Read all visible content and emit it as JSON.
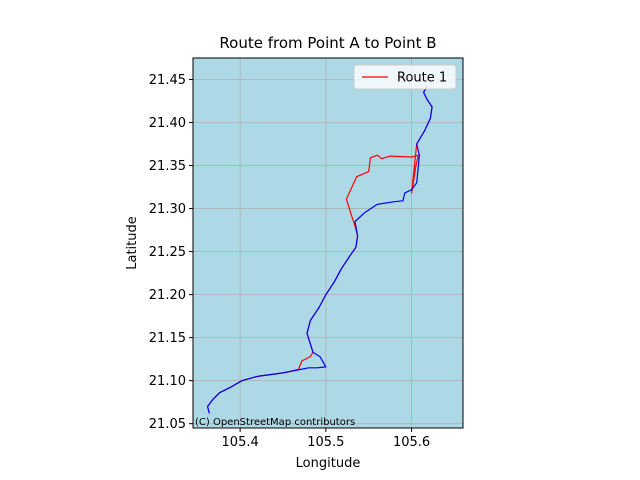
{
  "chart_data": {
    "type": "line",
    "title": "Route from Point A to Point B",
    "xlabel": "Longitude",
    "ylabel": "Latitude",
    "xlim": [
      105.345,
      105.66
    ],
    "ylim": [
      21.045,
      21.475
    ],
    "xticks": [
      105.4,
      105.5,
      105.6
    ],
    "xtick_labels": [
      "105.4",
      "105.5",
      "105.6"
    ],
    "yticks": [
      21.05,
      21.1,
      21.15,
      21.2,
      21.25,
      21.3,
      21.35,
      21.4,
      21.45
    ],
    "ytick_labels": [
      "21.05",
      "21.10",
      "21.15",
      "21.20",
      "21.25",
      "21.30",
      "21.35",
      "21.40",
      "21.45"
    ],
    "grid": true,
    "background_color": "#add8e6",
    "legend_position": "top-right",
    "attribution": "(C) OpenStreetMap contributors",
    "series": [
      {
        "name": "Route 1",
        "color": "#ff0000",
        "in_legend": true,
        "points": [
          [
            105.364,
            21.062
          ],
          [
            105.362,
            21.07
          ],
          [
            105.368,
            21.078
          ],
          [
            105.376,
            21.086
          ],
          [
            105.388,
            21.092
          ],
          [
            105.402,
            21.1
          ],
          [
            105.42,
            21.105
          ],
          [
            105.45,
            21.109
          ],
          [
            105.468,
            21.113
          ],
          [
            105.472,
            21.123
          ],
          [
            105.482,
            21.128
          ],
          [
            105.485,
            21.133
          ],
          [
            105.478,
            21.155
          ],
          [
            105.482,
            21.17
          ],
          [
            105.492,
            21.185
          ],
          [
            105.5,
            21.2
          ],
          [
            105.51,
            21.215
          ],
          [
            105.518,
            21.23
          ],
          [
            105.528,
            21.245
          ],
          [
            105.535,
            21.255
          ],
          [
            105.537,
            21.268
          ],
          [
            105.534,
            21.28
          ],
          [
            105.529,
            21.295
          ],
          [
            105.524,
            21.311
          ],
          [
            105.536,
            21.337
          ],
          [
            105.55,
            21.343
          ],
          [
            105.552,
            21.359
          ],
          [
            105.56,
            21.362
          ],
          [
            105.565,
            21.358
          ],
          [
            105.575,
            21.361
          ],
          [
            105.6,
            21.36
          ],
          [
            105.608,
            21.362
          ],
          [
            105.605,
            21.35
          ],
          [
            105.602,
            21.33
          ],
          [
            105.6,
            21.318
          ],
          [
            105.606,
            21.375
          ],
          [
            105.615,
            21.39
          ],
          [
            105.622,
            21.405
          ],
          [
            105.624,
            21.418
          ],
          [
            105.618,
            21.427
          ],
          [
            105.614,
            21.435
          ],
          [
            105.618,
            21.442
          ]
        ]
      },
      {
        "name": "",
        "color": "#0000ff",
        "in_legend": false,
        "points": [
          [
            105.364,
            21.062
          ],
          [
            105.362,
            21.07
          ],
          [
            105.368,
            21.078
          ],
          [
            105.376,
            21.086
          ],
          [
            105.388,
            21.092
          ],
          [
            105.402,
            21.1
          ],
          [
            105.42,
            21.105
          ],
          [
            105.45,
            21.109
          ],
          [
            105.47,
            21.113
          ],
          [
            105.48,
            21.115
          ],
          [
            105.49,
            21.115
          ],
          [
            105.5,
            21.116
          ],
          [
            105.493,
            21.128
          ],
          [
            105.485,
            21.133
          ],
          [
            105.478,
            21.155
          ],
          [
            105.482,
            21.17
          ],
          [
            105.492,
            21.185
          ],
          [
            105.5,
            21.2
          ],
          [
            105.51,
            21.215
          ],
          [
            105.518,
            21.23
          ],
          [
            105.528,
            21.245
          ],
          [
            105.535,
            21.255
          ],
          [
            105.537,
            21.268
          ],
          [
            105.534,
            21.285
          ],
          [
            105.545,
            21.295
          ],
          [
            105.56,
            21.305
          ],
          [
            105.58,
            21.308
          ],
          [
            105.59,
            21.309
          ],
          [
            105.592,
            21.318
          ],
          [
            105.6,
            21.322
          ],
          [
            105.606,
            21.33
          ],
          [
            105.608,
            21.35
          ],
          [
            105.609,
            21.362
          ],
          [
            105.606,
            21.375
          ],
          [
            105.615,
            21.39
          ],
          [
            105.622,
            21.405
          ],
          [
            105.624,
            21.418
          ],
          [
            105.618,
            21.427
          ],
          [
            105.614,
            21.435
          ],
          [
            105.618,
            21.442
          ]
        ]
      }
    ]
  }
}
